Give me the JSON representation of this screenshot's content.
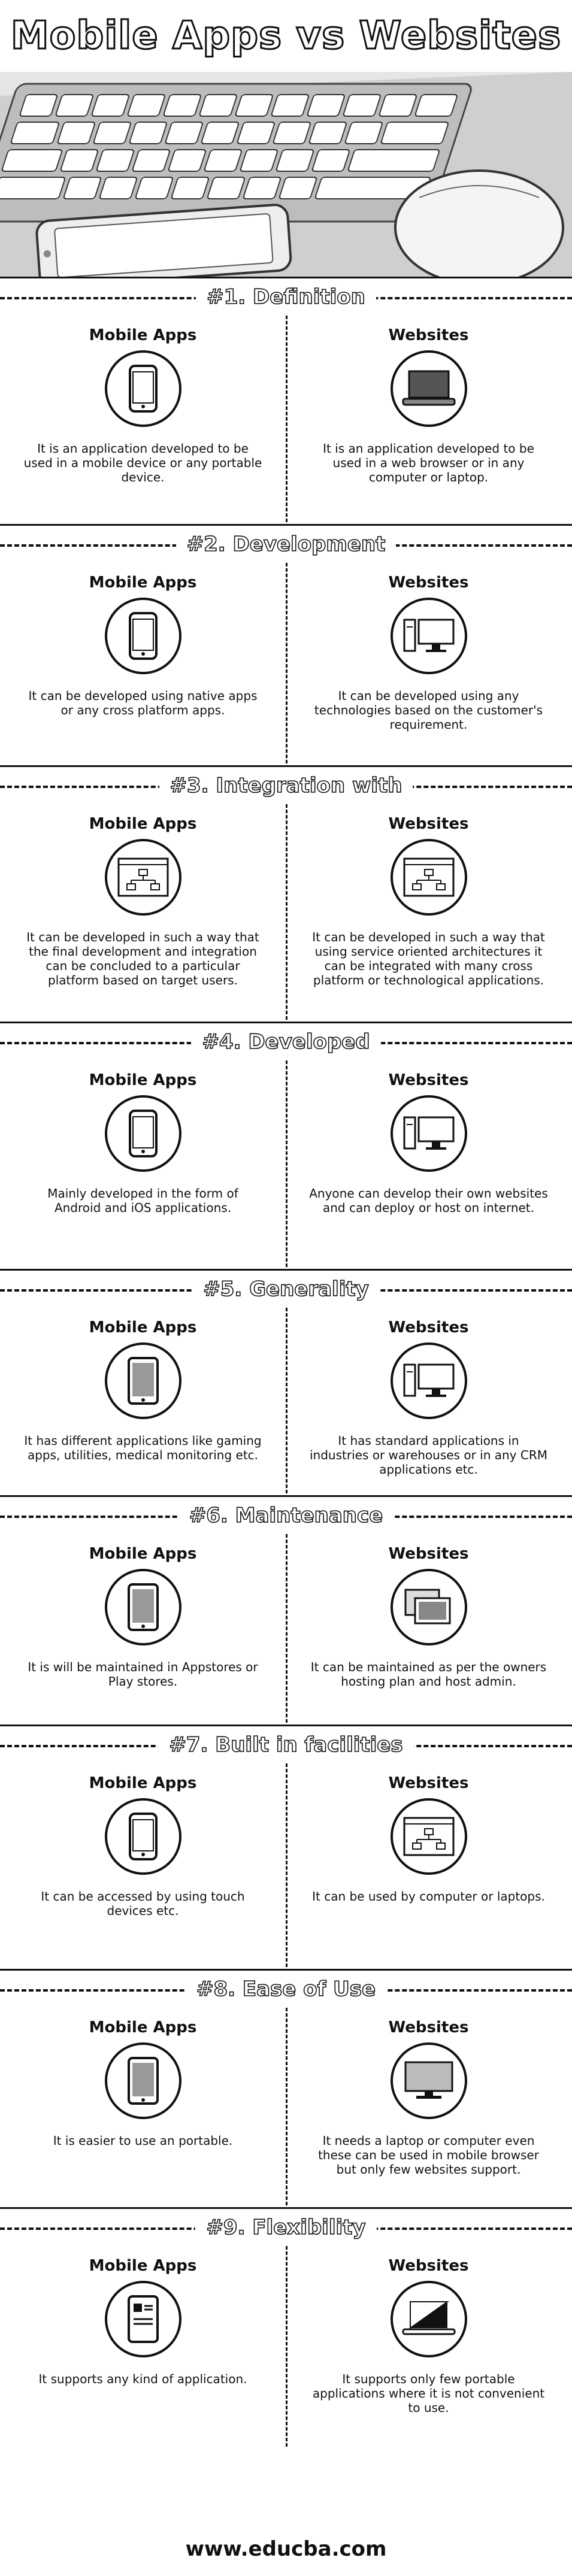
{
  "title": "Mobile Apps vs Websites",
  "column_labels": {
    "left": "Mobile Apps",
    "right": "Websites"
  },
  "sections": [
    {
      "heading": "#1. Definition",
      "left": "It is an application developed to be used in a mobile device or any portable device.",
      "right": "It is an application developed to be used in a web browser or in any computer or laptop."
    },
    {
      "heading": "#2. Development",
      "left": "It can be developed using native apps or any cross platform apps.",
      "right": "It can be developed using any technologies based on the customer's requirement."
    },
    {
      "heading": "#3. Integration with",
      "left": "It can be developed in such a way that the final development and integration can be concluded to a particular platform based on target users.",
      "right": "It can be developed in such a way that using service oriented architectures it can be integrated with many cross platform or technological applications."
    },
    {
      "heading": "#4. Developed",
      "left": "Mainly developed in the form of Android and iOS applications.",
      "right": "Anyone can develop their own websites and can deploy or host on internet."
    },
    {
      "heading": "#5. Generality",
      "left": "It has different applications like gaming apps, utilities, medical monitoring etc.",
      "right": "It has standard applications in industries or warehouses or in any CRM applications etc."
    },
    {
      "heading": "#6. Maintenance",
      "left": "It is will be maintained in Appstores or Play stores.",
      "right": "It can be maintained as per the owners hosting plan and host admin."
    },
    {
      "heading": "#7. Built in facilities",
      "left": "It can be accessed by using touch devices etc.",
      "right": "It can be used by computer or laptops."
    },
    {
      "heading": "#8. Ease of Use",
      "left": "It is easier to use an portable.",
      "right": "It needs a laptop or computer even these can be used in mobile browser but only few websites support."
    },
    {
      "heading": "#9. Flexibility",
      "left": "It supports any kind of application.",
      "right": "It supports only few portable applications where it is not convenient to use."
    }
  ],
  "footer": "www.educba.com"
}
